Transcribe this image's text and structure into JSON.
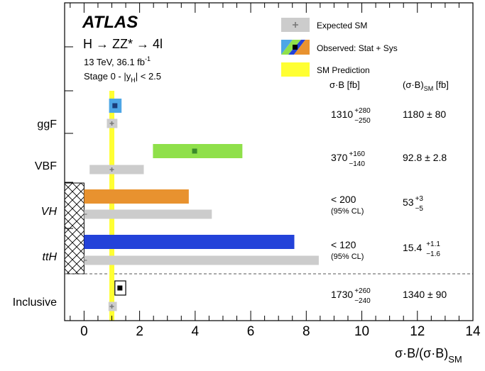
{
  "chart_data": {
    "type": "bar",
    "orientation": "horizontal",
    "experiment": "ATLAS",
    "process": "H → ZZ* → 4l",
    "energy": "13 TeV, 36.1 fb",
    "energy_exp": "-1",
    "stage_prefix": "Stage 0 - |y",
    "stage_sub": "H",
    "stage_suffix": "| < 2.5",
    "xlabel_main": "σ·B/(σ·B)",
    "xlabel_sub": "SM",
    "xlim": [
      -0.7,
      14
    ],
    "xticks": [
      "0",
      "2",
      "4",
      "6",
      "8",
      "10",
      "12",
      "14"
    ],
    "legend": {
      "expected": "Expected SM",
      "observed": "Observed: Stat + Sys",
      "prediction": "SM Prediction"
    },
    "col_header_1": "σ·B [fb]",
    "col_header_2_main": "(σ·B)",
    "col_header_2_sub": "SM",
    "col_header_2_unit": "[fb]",
    "sm_prediction_line": 1.0,
    "categories": [
      {
        "label": "ggF",
        "italic": false,
        "observed": {
          "center": 1.11,
          "low": 0.9,
          "high": 1.35,
          "color": "#4da6e6"
        },
        "expected": {
          "center": 1.0,
          "low": 0.82,
          "high": 1.2
        },
        "xsec_main": "1310",
        "xsec_up": "+280",
        "xsec_down": "−250",
        "xsec_note": "",
        "sm_main": "1180 ± 80",
        "sm_up": "",
        "sm_down": ""
      },
      {
        "label": "VBF",
        "italic": false,
        "observed": {
          "center": 3.98,
          "low": 2.48,
          "high": 5.7,
          "color": "#8fe04a"
        },
        "expected": {
          "center": 1.0,
          "low": 0.2,
          "high": 2.15
        },
        "xsec_main": "370",
        "xsec_up": "+160",
        "xsec_down": "−140",
        "xsec_note": "",
        "sm_main": "92.8 ± 2.8",
        "sm_up": "",
        "sm_down": ""
      },
      {
        "label": "VH",
        "italic": true,
        "observed": {
          "low": 0,
          "high": 3.77,
          "color": "#e8922f"
        },
        "expected": {
          "low": 0,
          "high": 4.6
        },
        "xsec_main": "< 200",
        "xsec_up": "",
        "xsec_down": "",
        "xsec_note": "(95% CL)",
        "sm_main": "53",
        "sm_up": "+3",
        "sm_down": "−5"
      },
      {
        "label": "ttH",
        "italic": true,
        "observed": {
          "low": 0,
          "high": 7.57,
          "color": "#2342d9"
        },
        "expected": {
          "low": 0,
          "high": 8.45
        },
        "xsec_main": "< 120",
        "xsec_up": "",
        "xsec_down": "",
        "xsec_note": "(95% CL)",
        "sm_main": "15.4",
        "sm_up": "+1.1",
        "sm_down": "−1.6"
      },
      {
        "label": "Inclusive",
        "italic": false,
        "observed": {
          "center": 1.29,
          "low": 1.11,
          "high": 1.5,
          "color": "#ffffff"
        },
        "expected": {
          "center": 1.0,
          "low": 0.88,
          "high": 1.18
        },
        "xsec_main": "1730",
        "xsec_up": "+260",
        "xsec_down": "−240",
        "xsec_note": "",
        "sm_main": "1340 ± 90",
        "sm_up": "",
        "sm_down": ""
      }
    ]
  }
}
